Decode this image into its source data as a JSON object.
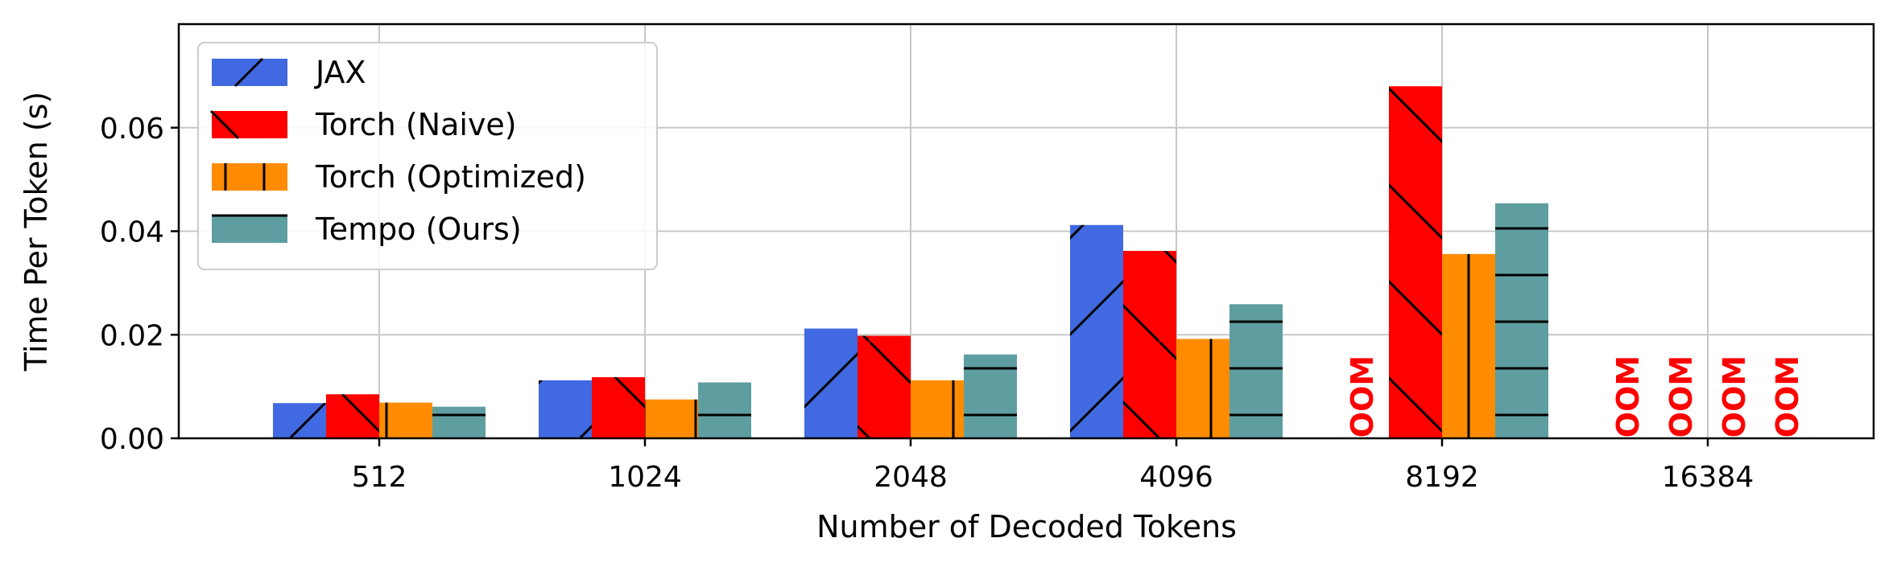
{
  "chart_data": {
    "type": "bar",
    "title": "",
    "xlabel": "Number of Decoded Tokens",
    "ylabel": "Time Per Token (s)",
    "categories": [
      "512",
      "1024",
      "2048",
      "4096",
      "8192",
      "16384"
    ],
    "ylim": [
      0,
      0.08
    ],
    "yticks": [
      "0.00",
      "0.02",
      "0.04",
      "0.06"
    ],
    "grid": true,
    "legend_position": "top-left",
    "oom_label": "OOM",
    "series": [
      {
        "name": "JAX",
        "color": "#4169e1",
        "hatch": "/",
        "values": [
          0.0068,
          0.0112,
          0.0212,
          0.0412,
          null,
          null
        ]
      },
      {
        "name": "Torch (Naive)",
        "color": "#ff0000",
        "hatch": "\\",
        "values": [
          0.0085,
          0.0118,
          0.0198,
          0.0362,
          0.068,
          null
        ]
      },
      {
        "name": "Torch (Optimized)",
        "color": "#ff8c00",
        "hatch": "|",
        "values": [
          0.0069,
          0.0075,
          0.0112,
          0.0192,
          0.0356,
          null
        ]
      },
      {
        "name": "Tempo (Ours)",
        "color": "#5f9ea0",
        "hatch": "-",
        "values": [
          0.0061,
          0.0108,
          0.0162,
          0.0259,
          0.0454,
          null
        ]
      }
    ]
  }
}
